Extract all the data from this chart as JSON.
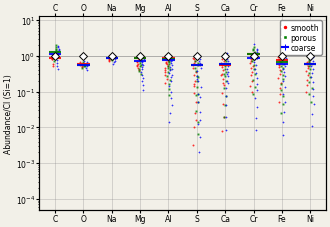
{
  "elements": [
    "C",
    "O",
    "Na",
    "Mg",
    "Al",
    "S",
    "Ca",
    "Cr",
    "Fe",
    "Ni"
  ],
  "ylim_log": [
    -4.3,
    1.1
  ],
  "ylabel": "Abundance/CI (Si=1)",
  "background_color": "#f2f0e8",
  "tick_fontsize": 5.5,
  "axis_fontsize": 5.5,
  "legend_fontsize": 5.5,
  "ci_line": 0.0,
  "smooth_medians_log": [
    -0.05,
    -0.22,
    -0.07,
    -0.07,
    -0.07,
    -0.26,
    -0.26,
    0.05,
    -0.12,
    -0.22
  ],
  "porous_medians_log": [
    0.11,
    -0.26,
    -0.05,
    -0.05,
    -0.1,
    -0.26,
    -0.22,
    0.05,
    -0.17,
    -0.22
  ],
  "coarse_medians_log": [
    0.04,
    -0.26,
    -0.05,
    -0.14,
    -0.12,
    -0.26,
    -0.22,
    -0.05,
    -0.22,
    -0.22
  ],
  "smooth_data_log": {
    "C": [
      -0.05,
      -0.08,
      -0.1,
      -0.02,
      -0.22,
      -0.3
    ],
    "O": [
      -0.22,
      -0.28,
      -0.32,
      -0.18,
      -0.25
    ],
    "Na": [
      -0.07,
      -0.1,
      -0.12,
      -0.15
    ],
    "Mg": [
      -0.07,
      -0.04,
      -0.1,
      -0.12,
      -0.15,
      -0.18,
      -0.22,
      -0.26,
      -0.3,
      -0.35,
      -0.4
    ],
    "Al": [
      -0.07,
      -0.04,
      -0.1,
      -0.14,
      -0.18,
      -0.24,
      -0.3,
      -0.35,
      -0.45,
      -0.55,
      -0.65,
      -0.75,
      -0.4,
      -0.2
    ],
    "S": [
      -0.26,
      -0.2,
      -0.15,
      -0.1,
      -0.05,
      -0.35,
      -0.45,
      -0.55,
      -0.7,
      -0.85,
      -1.05,
      -1.3,
      -1.6,
      -2.0,
      -2.5,
      -0.8,
      -1.8
    ],
    "Ca": [
      -0.26,
      -0.2,
      -0.15,
      -0.1,
      -0.32,
      -0.4,
      -0.5,
      -0.65,
      -0.82,
      -1.05,
      -1.35,
      -1.7,
      -2.1,
      -0.55,
      -0.75
    ],
    "Cr": [
      0.05,
      0.0,
      -0.05,
      -0.1,
      -0.15,
      -0.2,
      -0.28,
      -0.35,
      -0.45,
      -0.55,
      -0.7,
      -0.85,
      -1.0
    ],
    "Fe": [
      -0.12,
      -0.08,
      -0.04,
      -0.15,
      -0.2,
      -0.26,
      -0.32,
      -0.4,
      -0.5,
      -0.62,
      -0.75,
      -0.9,
      -1.08,
      -1.28
    ],
    "Ni": [
      -0.22,
      -0.18,
      -0.14,
      -0.28,
      -0.35,
      -0.44,
      -0.55,
      -0.68,
      -0.82,
      -1.0
    ]
  },
  "porous_data_log": {
    "C": [
      0.11,
      0.15,
      0.2,
      0.25,
      0.3,
      0.05,
      -0.05,
      -0.15
    ],
    "O": [
      -0.26,
      -0.3,
      -0.35,
      -0.22,
      -0.18,
      -0.28
    ],
    "Na": [
      -0.05,
      -0.08,
      -0.12
    ],
    "Mg": [
      -0.05,
      -0.02,
      -0.08,
      -0.12,
      -0.16,
      -0.2,
      -0.25,
      -0.3,
      -0.36,
      -0.44,
      -0.52
    ],
    "Al": [
      -0.1,
      -0.06,
      -0.14,
      -0.18,
      -0.24,
      -0.3,
      -0.38,
      -0.46,
      -0.56,
      -0.67,
      -0.8,
      -0.94,
      -1.1,
      -0.35
    ],
    "S": [
      -0.26,
      -0.2,
      -0.14,
      -0.08,
      -0.02,
      -0.34,
      -0.44,
      -0.56,
      -0.7,
      -0.87,
      -1.06,
      -1.28,
      -1.55,
      -1.85,
      -0.6,
      -1.1,
      -2.2
    ],
    "Ca": [
      -0.22,
      -0.16,
      -0.1,
      -0.04,
      -0.28,
      -0.36,
      -0.46,
      -0.58,
      -0.72,
      -0.9,
      -1.12,
      -1.38,
      -1.7,
      0.05,
      -0.5
    ],
    "Cr": [
      0.05,
      0.1,
      0.15,
      0.2,
      0.25,
      0.0,
      -0.08,
      -0.16,
      -0.26,
      -0.38,
      -0.52,
      -0.68,
      -0.86,
      -1.06
    ],
    "Fe": [
      -0.17,
      -0.12,
      -0.08,
      -0.22,
      -0.28,
      -0.35,
      -0.43,
      -0.53,
      -0.65,
      -0.79,
      -0.95,
      -1.13,
      -1.35,
      -1.6,
      -0.05
    ],
    "Ni": [
      -0.22,
      -0.17,
      -0.12,
      -0.3,
      -0.38,
      -0.48,
      -0.6,
      -0.74,
      -0.9,
      -1.08,
      -1.3,
      0.0
    ]
  },
  "coarse_data_log": {
    "C": [
      0.04,
      0.08,
      0.12,
      0.16,
      0.2,
      0.24,
      0.28,
      -0.04,
      -0.12,
      -0.2,
      -0.28,
      -0.36
    ],
    "O": [
      -0.26,
      -0.3,
      -0.22,
      -0.18,
      -0.34,
      -0.4,
      -0.14
    ],
    "Na": [
      -0.05,
      -0.09,
      -0.14,
      -0.18,
      -0.22
    ],
    "Mg": [
      -0.14,
      -0.1,
      -0.06,
      -0.18,
      -0.22,
      -0.27,
      -0.32,
      -0.38,
      -0.45,
      -0.53,
      -0.62,
      -0.72,
      -0.83,
      -0.95
    ],
    "Al": [
      -0.12,
      -0.08,
      -0.04,
      -0.16,
      -0.2,
      -0.26,
      -0.32,
      -0.4,
      -0.49,
      -0.59,
      -0.71,
      -0.85,
      -1.0,
      -1.18,
      -1.38,
      -1.6,
      -1.85,
      -0.55,
      -0.38
    ],
    "S": [
      -0.26,
      -0.2,
      -0.14,
      -0.08,
      -0.02,
      -0.34,
      -0.44,
      -0.56,
      -0.7,
      -0.87,
      -1.06,
      -1.3,
      -1.58,
      -1.9,
      -2.28,
      -2.7,
      -0.65,
      -1.15,
      -1.8
    ],
    "Ca": [
      -0.22,
      -0.16,
      -0.1,
      -0.04,
      -0.28,
      -0.36,
      -0.46,
      -0.58,
      -0.72,
      -0.9,
      -1.12,
      -1.38,
      -1.7,
      -2.08,
      0.08,
      -0.5,
      -0.75
    ],
    "Cr": [
      -0.05,
      0.0,
      0.05,
      0.1,
      0.15,
      -0.1,
      -0.18,
      -0.26,
      -0.36,
      -0.48,
      -0.62,
      -0.78,
      -0.96,
      -1.18,
      -1.44,
      -1.74,
      -2.08,
      -0.05,
      0.2,
      0.32
    ],
    "Fe": [
      -0.22,
      -0.16,
      -0.1,
      -0.04,
      -0.28,
      -0.36,
      -0.46,
      -0.58,
      -0.72,
      -0.88,
      -1.07,
      -1.3,
      -1.56,
      -1.86,
      -2.22,
      -0.05,
      0.0,
      0.05
    ],
    "Ni": [
      -0.22,
      -0.16,
      -0.1,
      -0.04,
      -0.3,
      -0.38,
      -0.48,
      -0.6,
      -0.74,
      -0.92,
      -1.12,
      -1.36,
      -1.64,
      -1.96,
      0.05,
      0.12
    ]
  }
}
